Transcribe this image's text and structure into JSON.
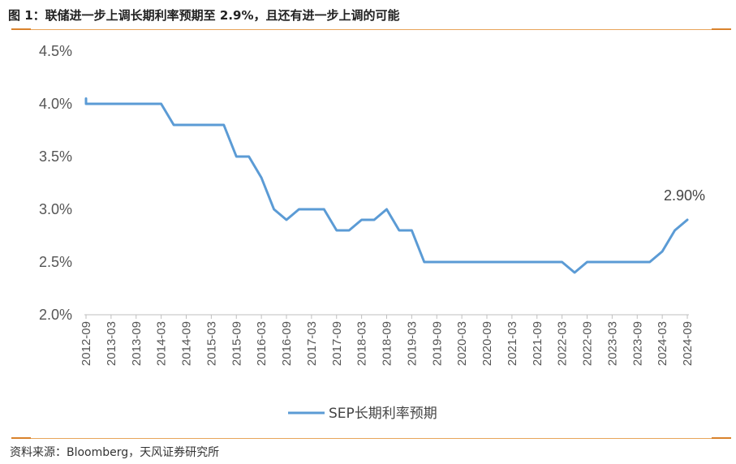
{
  "header": {
    "title": "图 1：联储进一步上调长期利率预期至 2.9%，且还有进一步上调的可能"
  },
  "footer": {
    "source": "资料来源：Bloomberg，天风证券研究所"
  },
  "colors": {
    "line": "#5b9bd5",
    "rule": "#e8a55a",
    "axis": "#bfbfbf"
  },
  "chart_data": {
    "type": "line",
    "title": "",
    "xlabel": "",
    "ylabel": "",
    "ylim": [
      2.0,
      4.5
    ],
    "yticks": [
      "4.5%",
      "4.0%",
      "3.5%",
      "3.0%",
      "2.5%",
      "2.0%"
    ],
    "categories": [
      "2012-09",
      "2013-03",
      "2013-09",
      "2014-03",
      "2014-09",
      "2015-03",
      "2015-09",
      "2016-03",
      "2016-09",
      "2017-03",
      "2017-09",
      "2018-03",
      "2018-09",
      "2019-03",
      "2019-09",
      "2020-03",
      "2020-09",
      "2021-03",
      "2021-09",
      "2022-03",
      "2022-09",
      "2023-03",
      "2023-09",
      "2024-03",
      "2024-09"
    ],
    "grid": false,
    "legend_position": "bottom",
    "series": [
      {
        "name": "SEP长期利率预期",
        "x": [
          "2012-09",
          "2012-09",
          "2012-12",
          "2013-03",
          "2013-06",
          "2013-09",
          "2013-12",
          "2014-03",
          "2014-06",
          "2014-09",
          "2014-12",
          "2015-03",
          "2015-06",
          "2015-09",
          "2015-12",
          "2016-03",
          "2016-06",
          "2016-09",
          "2016-12",
          "2017-03",
          "2017-06",
          "2017-09",
          "2017-12",
          "2018-03",
          "2018-06",
          "2018-09",
          "2018-12",
          "2019-03",
          "2019-06",
          "2019-09",
          "2019-12",
          "2020-03",
          "2020-06",
          "2020-09",
          "2020-12",
          "2021-03",
          "2021-06",
          "2021-09",
          "2021-12",
          "2022-03",
          "2022-06",
          "2022-09",
          "2022-12",
          "2023-03",
          "2023-06",
          "2023-09",
          "2023-12",
          "2024-03",
          "2024-06",
          "2024-09"
        ],
        "values": [
          4.05,
          4.0,
          4.0,
          4.0,
          4.0,
          4.0,
          4.0,
          4.0,
          3.8,
          3.8,
          3.8,
          3.8,
          3.8,
          3.5,
          3.5,
          3.3,
          3.0,
          2.9,
          3.0,
          3.0,
          3.0,
          2.8,
          2.8,
          2.9,
          2.9,
          3.0,
          2.8,
          2.8,
          2.5,
          2.5,
          2.5,
          2.5,
          2.5,
          2.5,
          2.5,
          2.5,
          2.5,
          2.5,
          2.5,
          2.5,
          2.4,
          2.5,
          2.5,
          2.5,
          2.5,
          2.5,
          2.5,
          2.6,
          2.8,
          2.9
        ]
      }
    ],
    "annotations": [
      {
        "at": "2024-09",
        "value": 2.9,
        "text": "2.90%"
      }
    ]
  }
}
